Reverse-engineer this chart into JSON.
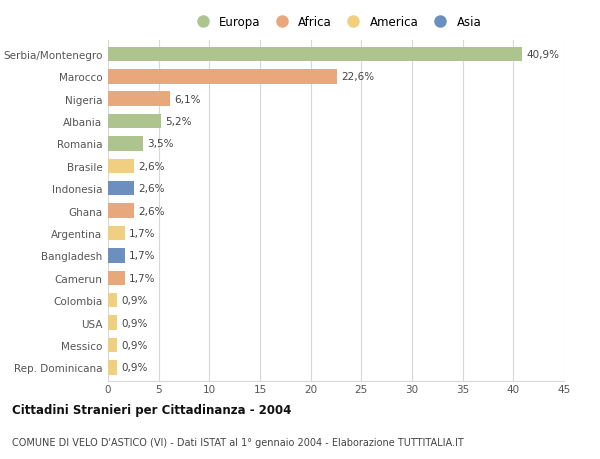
{
  "countries": [
    "Serbia/Montenegro",
    "Marocco",
    "Nigeria",
    "Albania",
    "Romania",
    "Brasile",
    "Indonesia",
    "Ghana",
    "Argentina",
    "Bangladesh",
    "Camerun",
    "Colombia",
    "USA",
    "Messico",
    "Rep. Dominicana"
  ],
  "values": [
    40.9,
    22.6,
    6.1,
    5.2,
    3.5,
    2.6,
    2.6,
    2.6,
    1.7,
    1.7,
    1.7,
    0.9,
    0.9,
    0.9,
    0.9
  ],
  "labels": [
    "40,9%",
    "22,6%",
    "6,1%",
    "5,2%",
    "3,5%",
    "2,6%",
    "2,6%",
    "2,6%",
    "1,7%",
    "1,7%",
    "1,7%",
    "0,9%",
    "0,9%",
    "0,9%",
    "0,9%"
  ],
  "continents": [
    "Europa",
    "Africa",
    "Africa",
    "Europa",
    "Europa",
    "America",
    "Asia",
    "Africa",
    "America",
    "Asia",
    "Africa",
    "America",
    "America",
    "America",
    "America"
  ],
  "colors": {
    "Europa": "#aec48f",
    "Africa": "#e8a87c",
    "America": "#f0d080",
    "Asia": "#6b8fbf"
  },
  "legend_order": [
    "Europa",
    "Africa",
    "America",
    "Asia"
  ],
  "xlim": [
    0,
    45
  ],
  "xticks": [
    0,
    5,
    10,
    15,
    20,
    25,
    30,
    35,
    40,
    45
  ],
  "title": "Cittadini Stranieri per Cittadinanza - 2004",
  "subtitle": "COMUNE DI VELO D'ASTICO (VI) - Dati ISTAT al 1° gennaio 2004 - Elaborazione TUTTITALIA.IT",
  "bg_color": "#ffffff",
  "grid_color": "#d8d8d8",
  "bar_height": 0.65
}
